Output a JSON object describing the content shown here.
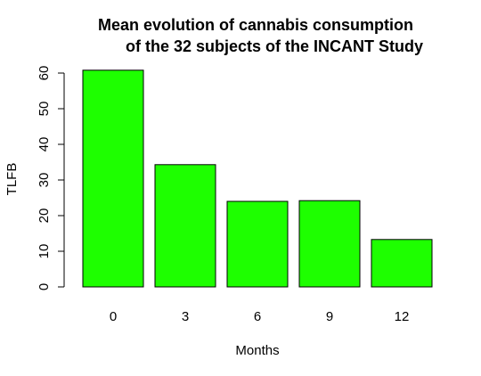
{
  "chart_data": {
    "type": "bar",
    "title_lines": [
      "Mean evolution of cannabis consumption",
      "of the 32 subjects of the INCANT Study"
    ],
    "xlabel": "Months",
    "ylabel": "TLFB",
    "categories": [
      "0",
      "3",
      "6",
      "9",
      "12"
    ],
    "values": [
      60.8,
      34.3,
      24.0,
      24.2,
      13.3
    ],
    "ylim": [
      0,
      60
    ],
    "yticks": [
      0,
      10,
      20,
      30,
      40,
      50,
      60
    ],
    "grid": false,
    "legend": "none",
    "bar_color": "#1eff00",
    "bar_border_color": "#000000"
  }
}
